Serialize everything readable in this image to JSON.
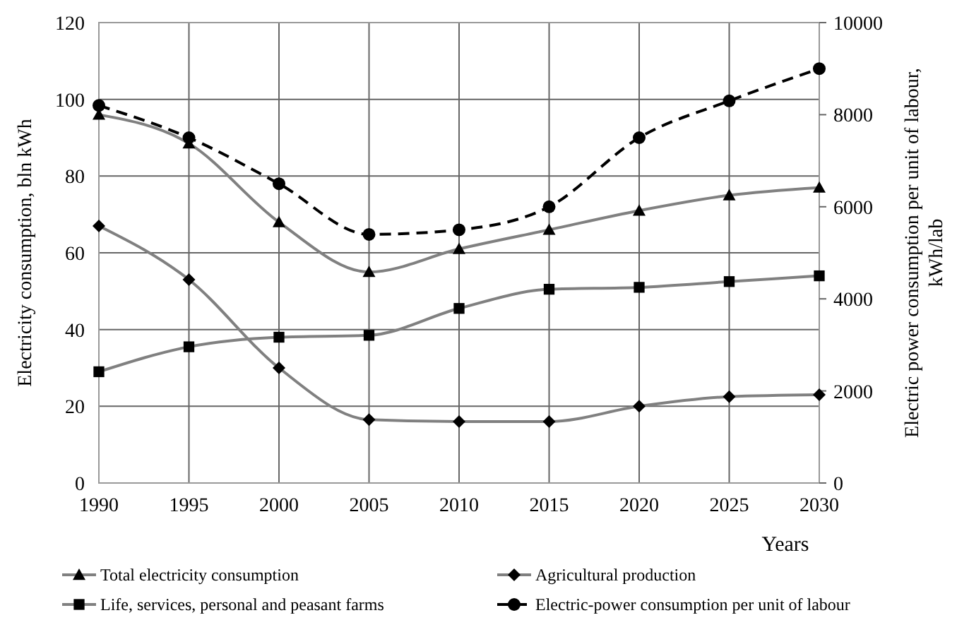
{
  "chart_data": {
    "type": "line",
    "xlabel": "Years",
    "ylabel": "Electricity consumption, bln kWh",
    "y2label": "Electric power consumption per unit of labour, kWh/lab",
    "x": [
      1990,
      1995,
      2000,
      2005,
      2010,
      2015,
      2020,
      2025,
      2030
    ],
    "xlim": [
      1990,
      2030
    ],
    "xticks": [
      1990,
      1995,
      2000,
      2005,
      2010,
      2015,
      2020,
      2025,
      2030
    ],
    "ylim": [
      0,
      120
    ],
    "yticks": [
      0,
      20,
      40,
      60,
      80,
      100,
      120
    ],
    "y2lim": [
      0,
      10000
    ],
    "y2ticks": [
      0,
      2000,
      4000,
      6000,
      8000,
      10000
    ],
    "grid": true,
    "legend": "bottom",
    "series": [
      {
        "name": "Total electricity consumption",
        "color": "#808080",
        "marker": "triangle",
        "line_style": "solid",
        "values": [
          96,
          88.5,
          68,
          55,
          61,
          66,
          71,
          75,
          77
        ]
      },
      {
        "name": "Agricultural production",
        "color": "#808080",
        "marker": "diamond",
        "line_style": "solid",
        "values": [
          67,
          53,
          30,
          16.5,
          16,
          16,
          20,
          22.5,
          23
        ]
      },
      {
        "name": "Life, services, personal and peasant farms",
        "color": "#808080",
        "marker": "square",
        "line_style": "solid",
        "values": [
          29,
          35.5,
          38,
          38.5,
          45.5,
          50.5,
          51,
          52.5,
          54
        ]
      },
      {
        "name": "Electric-power consumption per unit of labour",
        "color": "#000000",
        "marker": "circle",
        "line_style": "dashed",
        "axis": "y2",
        "values": [
          8200,
          7500,
          6500,
          5400,
          5500,
          6000,
          7500,
          8300,
          9000
        ]
      }
    ]
  }
}
